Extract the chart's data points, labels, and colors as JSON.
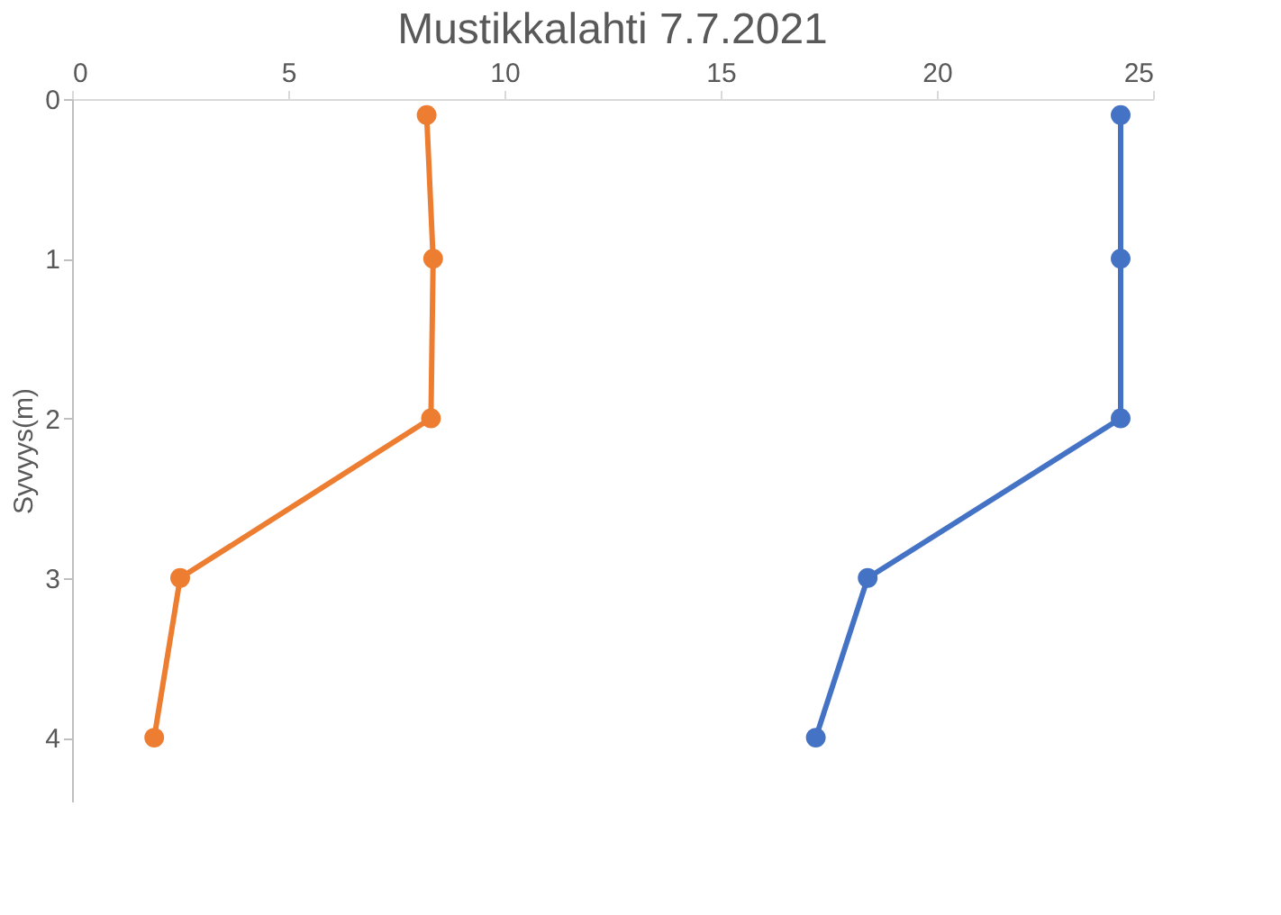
{
  "chart_data": {
    "type": "line",
    "title": "Mustikkalahti 7.7.2021",
    "ylabel": "Syvyys(m)",
    "series": [
      {
        "color": "#ed7d31",
        "x": [
          8.2,
          8.35,
          8.3,
          2.5,
          1.9
        ],
        "values": [
          0.1,
          1,
          2,
          3,
          4
        ]
      },
      {
        "color": "#4472c4",
        "x": [
          24.25,
          24.25,
          24.25,
          18.4,
          17.2
        ],
        "values": [
          0.1,
          1,
          2,
          3,
          4
        ]
      }
    ],
    "xlim": [
      0,
      25
    ],
    "xticks": [
      0,
      5,
      10,
      15,
      20,
      25
    ],
    "ylim": [
      4.4,
      0
    ],
    "yticks": [
      0,
      1,
      2,
      3,
      4
    ],
    "grid": false,
    "legend": false,
    "marker": "circle",
    "line_style": "solid"
  }
}
